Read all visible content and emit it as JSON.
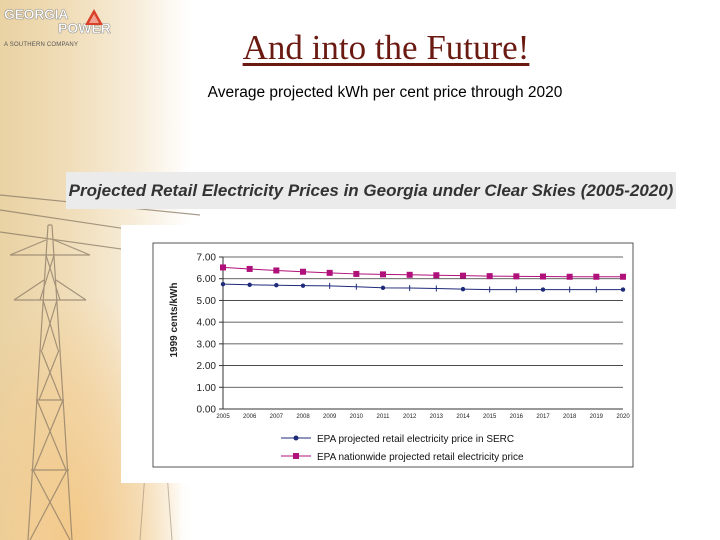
{
  "logo": {
    "line1": "GEORGIA",
    "line2": "POWER",
    "line3": "A SOUTHERN COMPANY"
  },
  "slide": {
    "title": "And into the Future!",
    "subtitle": "Average projected kWh per cent price through 2020"
  },
  "banner": {
    "text": "Projected Retail Electricity Prices in Georgia under Clear Skies (2005-2020)"
  },
  "colors": {
    "title": "#6b1a12",
    "serc_series": "#1f2a7a",
    "nationwide_series": "#b0107a"
  },
  "chart_data": {
    "type": "line",
    "title": "Projected Retail Electricity Prices in Georgia under Clear Skies (2005-2020)",
    "xlabel": "",
    "ylabel": "1999 cents/kWh",
    "ylim": [
      0,
      7
    ],
    "yticks": [
      "0.00",
      "1.00",
      "2.00",
      "3.00",
      "4.00",
      "5.00",
      "6.00",
      "7.00"
    ],
    "categories": [
      "2005",
      "2006",
      "2007",
      "2008",
      "2009",
      "2010",
      "2011",
      "2012",
      "2013",
      "2014",
      "2015",
      "2016",
      "2017",
      "2018",
      "2019",
      "2020"
    ],
    "grid": true,
    "legend": "bottom",
    "series": [
      {
        "name": "EPA projected retail electricity price in SERC",
        "marker": "circle",
        "values": [
          5.75,
          5.72,
          5.7,
          5.68,
          5.67,
          5.63,
          5.58,
          5.57,
          5.55,
          5.52,
          5.5,
          5.5,
          5.5,
          5.5,
          5.5,
          5.5
        ]
      },
      {
        "name": "EPA nationwide projected retail electricity price",
        "marker": "square",
        "values": [
          6.52,
          6.45,
          6.38,
          6.32,
          6.27,
          6.22,
          6.2,
          6.18,
          6.16,
          6.14,
          6.12,
          6.11,
          6.1,
          6.09,
          6.09,
          6.09
        ]
      }
    ]
  }
}
